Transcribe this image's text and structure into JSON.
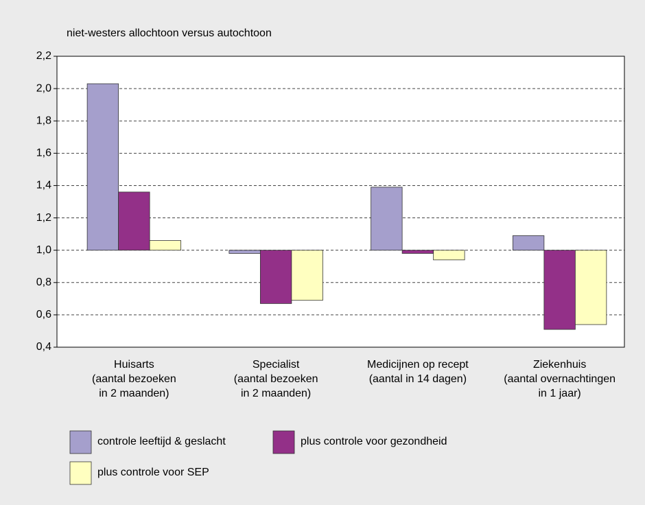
{
  "chart_data": {
    "type": "bar",
    "y_label": "niet-westers allochtoon versus autochtoon",
    "categories": [
      "Huisarts\n(aantal bezoeken\nin 2 maanden)",
      "Specialist\n(aantal bezoeken\nin 2 maanden)",
      "Medicijnen op recept\n(aantal in 14 dagen)",
      "Ziekenhuis\n(aantal overnachtingen\nin 1 jaar)"
    ],
    "series": [
      {
        "name": "controle leeftijd & geslacht",
        "color": "#a59fcc",
        "values": [
          2.03,
          0.98,
          1.39,
          1.09
        ]
      },
      {
        "name": "plus controle voor gezondheid",
        "color": "#933088",
        "values": [
          1.36,
          0.67,
          0.98,
          0.51
        ]
      },
      {
        "name": "plus controle voor SEP",
        "color": "#ffffc0",
        "values": [
          1.06,
          0.69,
          0.94,
          0.54
        ]
      }
    ],
    "baseline": 1.0,
    "ylim": [
      0.4,
      2.2
    ],
    "yticks": [
      {
        "value": 0.4,
        "label": "0,4"
      },
      {
        "value": 0.6,
        "label": "0,6"
      },
      {
        "value": 0.8,
        "label": "0,8"
      },
      {
        "value": 1.0,
        "label": "1,0"
      },
      {
        "value": 1.2,
        "label": "1,2"
      },
      {
        "value": 1.4,
        "label": "1,4"
      },
      {
        "value": 1.6,
        "label": "1,6"
      },
      {
        "value": 1.8,
        "label": "1,8"
      },
      {
        "value": 2.0,
        "label": "2,0"
      },
      {
        "value": 2.2,
        "label": "2,2"
      }
    ],
    "grid": true
  }
}
